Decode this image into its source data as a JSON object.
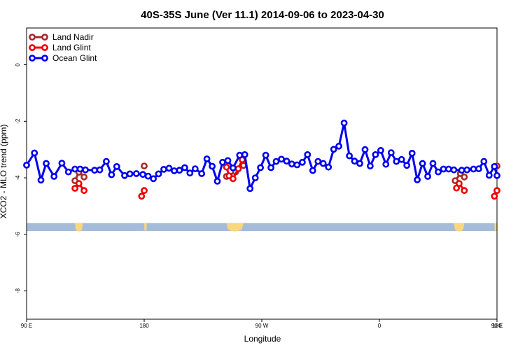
{
  "chart_data": {
    "type": "line",
    "title": "40S-35S June (Ver 11.1)   2014-09-06 to 2023-04-30",
    "xlabel": "Longitude",
    "ylabel": "XCO2 - MLO trend (ppm)",
    "x_unwrapped_range": [
      90,
      450
    ],
    "y_range": [
      -9,
      1.3
    ],
    "x_ticks": [
      {
        "value": 90,
        "label": "90 E"
      },
      {
        "value": 180,
        "label": "180"
      },
      {
        "value": 270,
        "label": "90 W"
      },
      {
        "value": 360,
        "label": "0"
      },
      {
        "value": 450,
        "label": "90 E"
      },
      {
        "value": 540,
        "label": "180"
      }
    ],
    "y_ticks": [
      {
        "value": 0,
        "label": "0"
      },
      {
        "value": -2,
        "label": "-2"
      },
      {
        "value": -4,
        "label": "-4"
      },
      {
        "value": -6,
        "label": "-6"
      },
      {
        "value": -8,
        "label": "-8"
      }
    ],
    "legend_position": "top-left",
    "land_band": {
      "y_top": -5.6,
      "y_bottom": -5.88,
      "ocean_color": "#a4bcd9",
      "land_color": "#fbd77c"
    },
    "land_segments": [
      [
        127,
        133
      ],
      [
        180,
        182
      ],
      [
        243,
        256
      ],
      [
        417,
        425
      ],
      [
        448,
        450
      ]
    ],
    "series": [
      {
        "name": "Land Nadir",
        "color": "#a52a2a",
        "points": [
          [
            127,
            -4.1
          ],
          [
            130,
            -3.8
          ],
          [
            134,
            -3.97
          ],
          [
            180,
            -3.58
          ],
          [
            243,
            -3.95
          ],
          [
            250,
            -3.79
          ],
          [
            256,
            -3.56
          ],
          [
            418,
            -4.1
          ],
          [
            422,
            -3.85
          ],
          [
            425,
            -3.97
          ],
          [
            450,
            -3.58
          ]
        ]
      },
      {
        "name": "Land Glint",
        "color": "#ee0000",
        "points": [
          [
            127,
            -4.37
          ],
          [
            130,
            -4.2
          ],
          [
            134,
            -4.45
          ],
          [
            178,
            -4.65
          ],
          [
            180,
            -4.45
          ],
          [
            243,
            -3.62
          ],
          [
            245,
            -3.93
          ],
          [
            248,
            -4.03
          ],
          [
            252,
            -3.68
          ],
          [
            255,
            -3.36
          ],
          [
            419,
            -4.36
          ],
          [
            421,
            -4.2
          ],
          [
            425,
            -4.45
          ],
          [
            448,
            -4.65
          ],
          [
            450,
            -4.45
          ]
        ]
      },
      {
        "name": "Ocean Glint",
        "color": "#0000ee",
        "points": [
          [
            90,
            -3.55
          ],
          [
            96,
            -3.12
          ],
          [
            101,
            -4.08
          ],
          [
            105,
            -3.49
          ],
          [
            111,
            -3.95
          ],
          [
            117,
            -3.48
          ],
          [
            122,
            -3.79
          ],
          [
            127,
            -3.69
          ],
          [
            131,
            -3.69
          ],
          [
            135,
            -3.72
          ],
          [
            142,
            -3.73
          ],
          [
            146,
            -3.72
          ],
          [
            151,
            -3.42
          ],
          [
            155,
            -3.89
          ],
          [
            159,
            -3.6
          ],
          [
            165,
            -3.92
          ],
          [
            169,
            -3.86
          ],
          [
            174,
            -3.85
          ],
          [
            179,
            -3.88
          ],
          [
            183,
            -3.94
          ],
          [
            187,
            -4.03
          ],
          [
            191,
            -3.86
          ],
          [
            195,
            -3.7
          ],
          [
            199,
            -3.66
          ],
          [
            203,
            -3.75
          ],
          [
            207,
            -3.73
          ],
          [
            211,
            -3.64
          ],
          [
            215,
            -3.83
          ],
          [
            219,
            -3.68
          ],
          [
            224,
            -3.85
          ],
          [
            228,
            -3.33
          ],
          [
            232,
            -3.59
          ],
          [
            236,
            -4.12
          ],
          [
            240,
            -3.45
          ],
          [
            244,
            -3.39
          ],
          [
            248,
            -3.65
          ],
          [
            253,
            -3.2
          ],
          [
            257,
            -3.18
          ],
          [
            261,
            -4.38
          ],
          [
            265,
            -4.0
          ],
          [
            269,
            -3.64
          ],
          [
            273,
            -3.2
          ],
          [
            277,
            -3.64
          ],
          [
            281,
            -3.42
          ],
          [
            285,
            -3.34
          ],
          [
            289,
            -3.41
          ],
          [
            293,
            -3.51
          ],
          [
            297,
            -3.54
          ],
          [
            301,
            -3.45
          ],
          [
            305,
            -3.18
          ],
          [
            309,
            -3.74
          ],
          [
            313,
            -3.42
          ],
          [
            317,
            -3.49
          ],
          [
            321,
            -3.62
          ],
          [
            325,
            -2.99
          ],
          [
            329,
            -2.88
          ],
          [
            333,
            -2.06
          ],
          [
            337,
            -3.22
          ],
          [
            341,
            -3.41
          ],
          [
            345,
            -3.49
          ],
          [
            349,
            -3.0
          ],
          [
            353,
            -3.58
          ],
          [
            357,
            -3.18
          ],
          [
            361,
            -3.03
          ],
          [
            365,
            -3.52
          ],
          [
            369,
            -3.11
          ],
          [
            373,
            -3.42
          ],
          [
            377,
            -3.35
          ],
          [
            381,
            -3.56
          ],
          [
            385,
            -3.13
          ],
          [
            389,
            -4.07
          ],
          [
            393,
            -3.49
          ],
          [
            397,
            -3.95
          ],
          [
            401,
            -3.49
          ],
          [
            405,
            -3.79
          ],
          [
            409,
            -3.69
          ],
          [
            413,
            -3.69
          ],
          [
            417,
            -3.72
          ],
          [
            423,
            -3.73
          ],
          [
            427,
            -3.72
          ],
          [
            432,
            -3.69
          ],
          [
            436,
            -3.68
          ],
          [
            440,
            -3.42
          ],
          [
            444,
            -3.91
          ],
          [
            448,
            -3.6
          ],
          [
            450,
            -3.92
          ]
        ]
      }
    ]
  }
}
